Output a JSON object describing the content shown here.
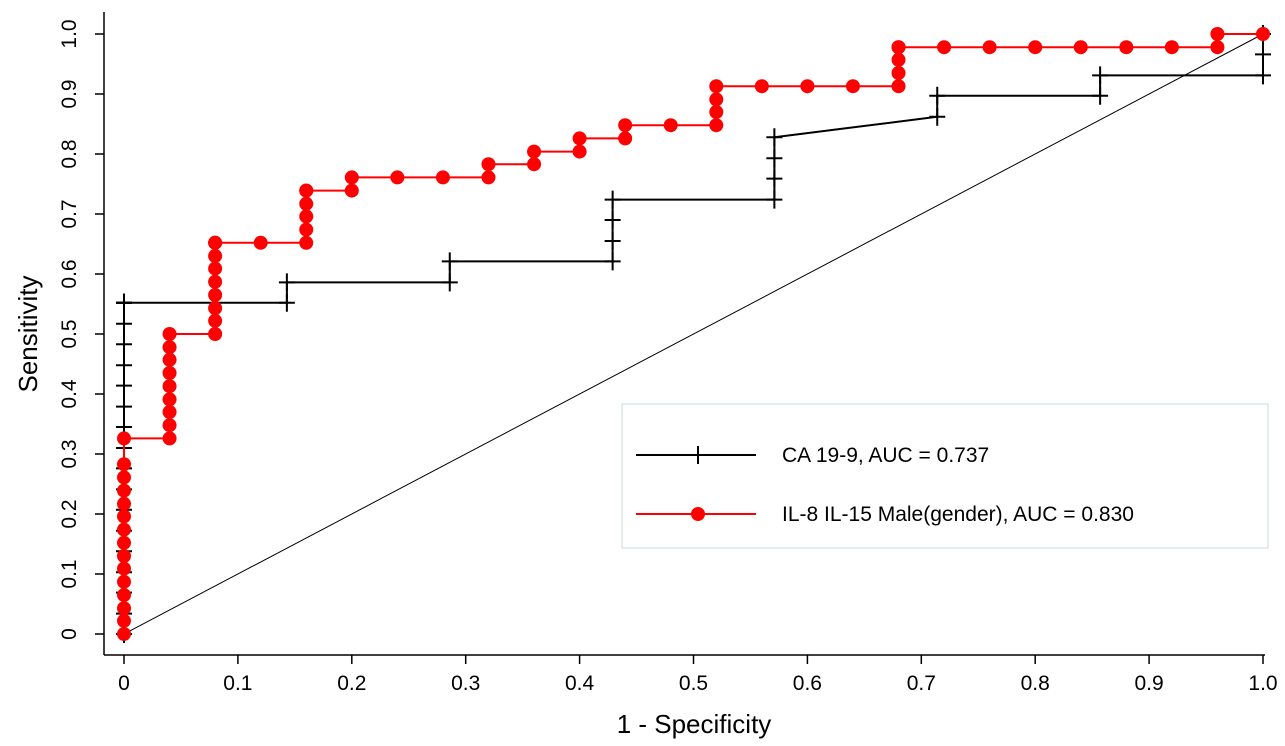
{
  "chart_data": {
    "type": "line",
    "title": "",
    "xlabel": "1 - Specificity",
    "ylabel": "Sensitivity",
    "xlim": [
      0,
      1
    ],
    "ylim": [
      0,
      1
    ],
    "x_ticks": [
      "0",
      "0.1",
      "0.2",
      "0.3",
      "0.4",
      "0.5",
      "0.6",
      "0.7",
      "0.8",
      "0.9",
      "1.0"
    ],
    "y_ticks": [
      "0",
      "0.1",
      "0.2",
      "0.3",
      "0.4",
      "0.5",
      "0.6",
      "0.7",
      "0.8",
      "0.9",
      "1.0"
    ],
    "grid": false,
    "legend_position": "bottom-right",
    "reference_line": {
      "x": [
        0,
        1
      ],
      "y": [
        0,
        1
      ],
      "color": "#000000"
    },
    "series": [
      {
        "name": "CA 19-9, AUC = 0.737",
        "color": "#000000",
        "marker": "plus",
        "x": [
          0,
          0,
          0,
          0,
          0,
          0,
          0,
          0,
          0,
          0,
          0,
          0,
          0,
          0,
          0,
          0,
          0,
          0,
          0,
          0,
          0.143,
          0.143,
          0.286,
          0.286,
          0.429,
          0.429,
          0.429,
          0.429,
          0.571,
          0.571,
          0.571,
          0.571,
          0.714,
          0.714,
          0.857,
          0.857,
          1.0,
          1.0,
          1.0
        ],
        "y": [
          0,
          0.034,
          0.069,
          0.103,
          0.138,
          0.172,
          0.207,
          0.241,
          0.276,
          0.31,
          0.345,
          0.379,
          0.414,
          0.448,
          0.483,
          0.517,
          0.552,
          0.552,
          0.552,
          0.552,
          0.552,
          0.586,
          0.586,
          0.621,
          0.621,
          0.655,
          0.69,
          0.724,
          0.724,
          0.759,
          0.793,
          0.828,
          0.862,
          0.897,
          0.897,
          0.931,
          0.931,
          0.966,
          1.0
        ]
      },
      {
        "name": "IL-8 IL-15 Male(gender), AUC = 0.830",
        "color": "#ff0000",
        "marker": "circle",
        "x": [
          0,
          0,
          0,
          0,
          0,
          0,
          0,
          0,
          0,
          0,
          0,
          0,
          0,
          0,
          0,
          0.04,
          0.04,
          0.04,
          0.04,
          0.04,
          0.04,
          0.04,
          0.04,
          0.04,
          0.08,
          0.08,
          0.08,
          0.08,
          0.08,
          0.08,
          0.08,
          0.08,
          0.08,
          0.12,
          0.16,
          0.16,
          0.16,
          0.16,
          0.16,
          0.16,
          0.2,
          0.2,
          0.24,
          0.28,
          0.32,
          0.32,
          0.36,
          0.36,
          0.4,
          0.4,
          0.44,
          0.44,
          0.48,
          0.52,
          0.52,
          0.52,
          0.52,
          0.56,
          0.6,
          0.64,
          0.68,
          0.68,
          0.68,
          0.68,
          0.68,
          0.72,
          0.76,
          0.8,
          0.84,
          0.88,
          0.92,
          0.96,
          0.96,
          1.0
        ],
        "y": [
          0,
          0.022,
          0.043,
          0.065,
          0.087,
          0.109,
          0.13,
          0.152,
          0.174,
          0.196,
          0.217,
          0.239,
          0.261,
          0.283,
          0.326,
          0.326,
          0.348,
          0.37,
          0.391,
          0.413,
          0.435,
          0.457,
          0.478,
          0.5,
          0.5,
          0.522,
          0.543,
          0.565,
          0.587,
          0.609,
          0.63,
          0.652,
          0.652,
          0.652,
          0.652,
          0.674,
          0.696,
          0.717,
          0.739,
          0.739,
          0.739,
          0.761,
          0.761,
          0.761,
          0.761,
          0.783,
          0.783,
          0.804,
          0.804,
          0.826,
          0.826,
          0.848,
          0.848,
          0.848,
          0.87,
          0.891,
          0.913,
          0.913,
          0.913,
          0.913,
          0.913,
          0.935,
          0.957,
          0.978,
          0.978,
          0.978,
          0.978,
          0.978,
          0.978,
          0.978,
          0.978,
          0.978,
          1.0,
          1.0
        ]
      }
    ]
  }
}
